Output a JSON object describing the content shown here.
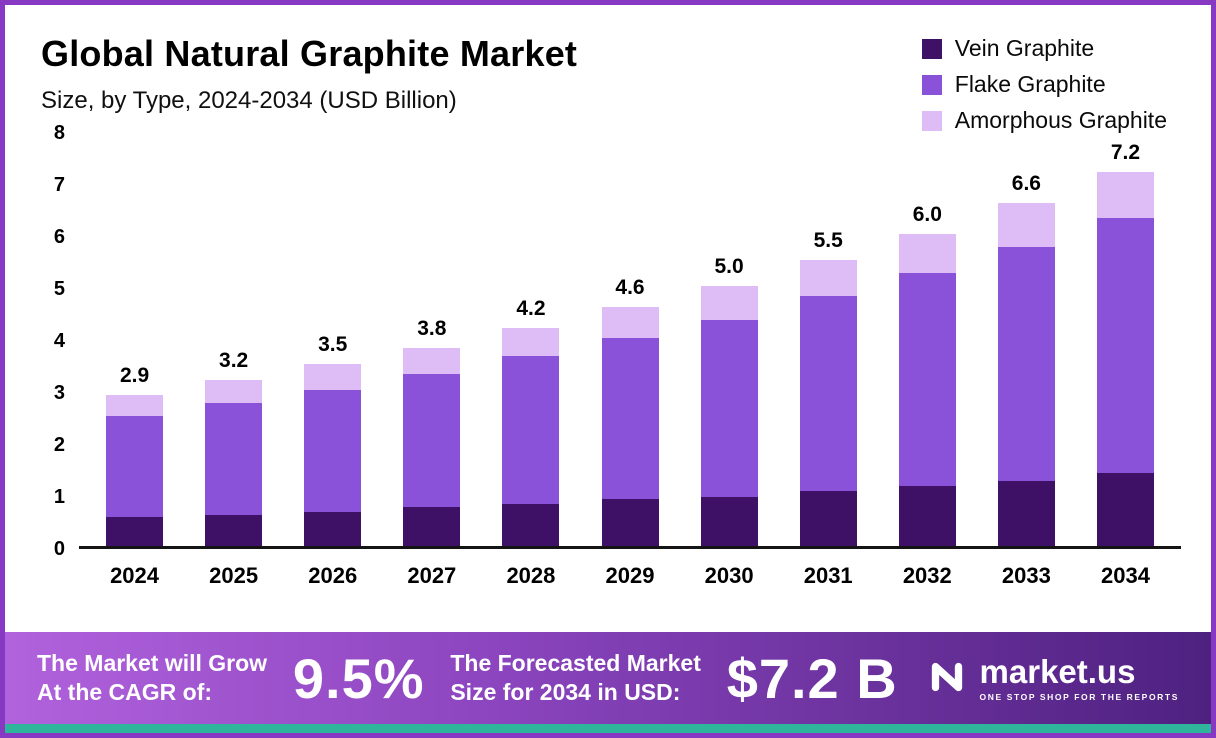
{
  "header": {
    "title": "Global Natural Graphite Market",
    "subtitle": "Size, by Type, 2024-2034 (USD Billion)"
  },
  "chart_data": {
    "type": "bar",
    "stacked": true,
    "title": "Global Natural Graphite Market",
    "subtitle": "Size, by Type, 2024-2034 (USD Billion)",
    "unit": "USD Billion",
    "categories": [
      "2024",
      "2025",
      "2026",
      "2027",
      "2028",
      "2029",
      "2030",
      "2031",
      "2032",
      "2033",
      "2034"
    ],
    "series": [
      {
        "name": "Vein Graphite",
        "color": "#3e1167",
        "values": [
          0.55,
          0.6,
          0.65,
          0.75,
          0.8,
          0.9,
          0.95,
          1.05,
          1.15,
          1.25,
          1.4
        ]
      },
      {
        "name": "Flake Graphite",
        "color": "#8952d8",
        "values": [
          1.95,
          2.15,
          2.35,
          2.55,
          2.85,
          3.1,
          3.4,
          3.75,
          4.1,
          4.5,
          4.9
        ]
      },
      {
        "name": "Amorphous Graphite",
        "color": "#debcf5",
        "values": [
          0.4,
          0.45,
          0.5,
          0.5,
          0.55,
          0.6,
          0.65,
          0.7,
          0.75,
          0.85,
          0.9
        ]
      }
    ],
    "totals": [
      2.9,
      3.2,
      3.5,
      3.8,
      4.2,
      4.6,
      5.0,
      5.5,
      6.0,
      6.6,
      7.2
    ],
    "totals_labels": [
      "2.9",
      "3.2",
      "3.5",
      "3.8",
      "4.2",
      "4.6",
      "5.0",
      "5.5",
      "6.0",
      "6.6",
      "7.2"
    ],
    "ylim": [
      0,
      8
    ],
    "yticks": [
      "0",
      "1",
      "2",
      "3",
      "4",
      "5",
      "6",
      "7",
      "8"
    ],
    "grid": false,
    "legend_position": "top-right"
  },
  "footer": {
    "cagr_label_line1": "The Market will Grow",
    "cagr_label_line2": "At the CAGR of:",
    "cagr_value": "9.5%",
    "forecast_label_line1": "The Forecasted Market",
    "forecast_label_line2": "Size for 2034 in USD:",
    "forecast_value": "$7.2 B",
    "logo_text": "market.us",
    "logo_tagline": "ONE STOP SHOP FOR THE REPORTS"
  },
  "colors": {
    "page_border": "#8739c4",
    "footer_gradient_start": "#b162dd",
    "footer_gradient_end": "#4e2180",
    "bottom_strip": "#2eb59c"
  }
}
